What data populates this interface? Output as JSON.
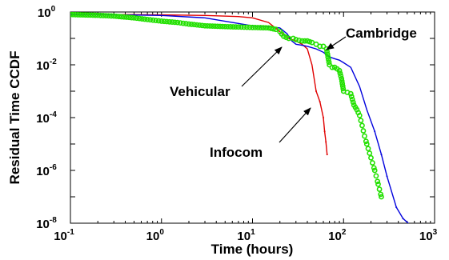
{
  "chart_data": {
    "type": "line",
    "title": "",
    "xlabel": "Time (hours)",
    "ylabel": "Residual Time CCDF",
    "xscale": "log",
    "yscale": "log",
    "xlim": [
      0.1,
      1000
    ],
    "ylim": [
      1e-08,
      1
    ],
    "x_tick_labels": [
      {
        "value": 0.1,
        "base": "10",
        "exp": "-1"
      },
      {
        "value": 1,
        "base": "10",
        "exp": "0"
      },
      {
        "value": 10,
        "base": "10",
        "exp": "1"
      },
      {
        "value": 100,
        "base": "10",
        "exp": "2"
      },
      {
        "value": 1000,
        "base": "10",
        "exp": "3"
      }
    ],
    "y_tick_labels": [
      {
        "value": 1,
        "base": "10",
        "exp": "0"
      },
      {
        "value": 0.01,
        "base": "10",
        "exp": "-2"
      },
      {
        "value": 0.0001,
        "base": "10",
        "exp": "-4"
      },
      {
        "value": 1e-06,
        "base": "10",
        "exp": "-6"
      },
      {
        "value": 1e-08,
        "base": "10",
        "exp": "-8"
      }
    ],
    "grid": false,
    "legend": "none",
    "series": [
      {
        "color": "#e00000",
        "style": "line",
        "x": [
          0.1,
          0.3,
          1,
          3,
          7,
          10,
          15,
          20,
          25,
          30,
          35,
          40,
          45,
          50,
          55,
          60,
          62,
          64,
          66
        ],
        "y": [
          0.8,
          0.8,
          0.78,
          0.74,
          0.67,
          0.6,
          0.4,
          0.18,
          0.1,
          0.08,
          0.06,
          0.04,
          0.01,
          0.001,
          0.0004,
          0.0001,
          3e-05,
          1.2e-05,
          4e-06
        ]
      },
      {
        "color": "#0000dd",
        "style": "line",
        "x": [
          0.1,
          0.3,
          1,
          3,
          10,
          15,
          20,
          24,
          27,
          30,
          35,
          40,
          50,
          60,
          70,
          80,
          90,
          100,
          120,
          150,
          180,
          220,
          260,
          300,
          380,
          450,
          550
        ],
        "y": [
          0.8,
          0.79,
          0.74,
          0.6,
          0.3,
          0.28,
          0.25,
          0.15,
          0.08,
          0.06,
          0.055,
          0.05,
          0.04,
          0.03,
          0.02,
          0.017,
          0.015,
          0.012,
          0.008,
          0.0015,
          0.0002,
          3e-05,
          4e-06,
          6e-07,
          4e-08,
          1.5e-08,
          8e-09
        ]
      },
      {
        "color": "#22e000",
        "style": "markers",
        "x": [
          0.1,
          0.2,
          0.3,
          0.5,
          0.7,
          1,
          1.5,
          2,
          3,
          5,
          7,
          10,
          15,
          18,
          20,
          22,
          25,
          28,
          30,
          35,
          40,
          45,
          50,
          55,
          60,
          65,
          70,
          75,
          80,
          85,
          90,
          95,
          100,
          110,
          120,
          130,
          140,
          150,
          160,
          170,
          180,
          200,
          220,
          240,
          260
        ],
        "y": [
          0.8,
          0.75,
          0.7,
          0.6,
          0.52,
          0.45,
          0.4,
          0.35,
          0.3,
          0.28,
          0.27,
          0.26,
          0.25,
          0.22,
          0.18,
          0.12,
          0.1,
          0.1,
          0.09,
          0.08,
          0.08,
          0.07,
          0.06,
          0.05,
          0.05,
          0.04,
          0.01,
          0.008,
          0.008,
          0.007,
          0.006,
          0.003,
          0.001,
          0.0009,
          0.0008,
          0.0003,
          0.0002,
          0.00012,
          5e-05,
          2e-05,
          1e-05,
          3e-06,
          1e-06,
          3e-07,
          1e-07
        ]
      }
    ],
    "annotations": [
      {
        "text": "Cambridge",
        "x": 60,
        "y": 0.017
      },
      {
        "text": "Vehicular",
        "x": 22,
        "y": 0.06
      },
      {
        "text": "Infocom",
        "x": 52,
        "y": 0.0006
      }
    ]
  }
}
